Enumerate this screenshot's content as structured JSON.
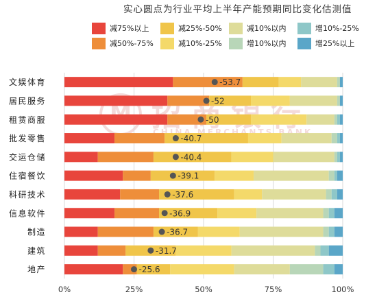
{
  "title": "实心圆点为行业平均上半年产能预期同比变化估测值",
  "watermark": {
    "cn": "招商银行",
    "en": "CHINA MERCHANTS BANK"
  },
  "legend": [
    {
      "label": "减75%以上",
      "color": "#e8453c"
    },
    {
      "label": "减25%-50%",
      "color": "#f0c54a"
    },
    {
      "label": "减10%以内",
      "color": "#dedc9a"
    },
    {
      "label": "增10%-25%",
      "color": "#8ec7c8"
    },
    {
      "label": "减50%-75%",
      "color": "#ee8e3a"
    },
    {
      "label": "减10%-25%",
      "color": "#f4d96a"
    },
    {
      "label": "增10%以内",
      "color": "#b8d6b8"
    },
    {
      "label": "增25%以上",
      "color": "#5aa6c8"
    }
  ],
  "chart_data": {
    "type": "bar",
    "orientation": "horizontal",
    "stacked": true,
    "xlim": [
      0,
      100
    ],
    "xticks": [
      "0%",
      "25%",
      "50%",
      "75%",
      "100%"
    ],
    "categories": [
      "文娱体育",
      "居民服务",
      "租赁商服",
      "批发零售",
      "交运仓储",
      "住宿餐饮",
      "科研技术",
      "信息软件",
      "制造",
      "建筑",
      "地产"
    ],
    "series": [
      {
        "name": "减75%以上",
        "color": "#e8453c",
        "values": [
          39,
          37,
          37,
          18,
          12,
          21,
          20,
          18,
          12,
          12,
          21
        ]
      },
      {
        "name": "减50%-75%",
        "color": "#ee8e3a",
        "values": [
          25,
          15,
          14,
          18,
          20,
          10,
          14,
          16,
          20,
          10,
          5
        ]
      },
      {
        "name": "减25%-50%",
        "color": "#f0c54a",
        "values": [
          13,
          15,
          16,
          30,
          28,
          23,
          27,
          21,
          16,
          18,
          12
        ]
      },
      {
        "name": "减10%-25%",
        "color": "#f4d96a",
        "values": [
          8,
          14,
          20,
          12,
          15,
          14,
          10,
          14,
          15,
          20,
          23
        ]
      },
      {
        "name": "减10%以内",
        "color": "#dedc9a",
        "values": [
          13,
          17,
          10,
          18,
          22,
          27,
          23,
          24,
          30,
          30,
          20
        ]
      },
      {
        "name": "增10%以内",
        "color": "#b8d6b8",
        "values": [
          1,
          1,
          1,
          2,
          1,
          2,
          2,
          2,
          2,
          2,
          12
        ]
      },
      {
        "name": "增10%-25%",
        "color": "#8ec7c8",
        "values": [
          0,
          0,
          1,
          1,
          1,
          1,
          2,
          2,
          2,
          3,
          4
        ]
      },
      {
        "name": "增25%以上",
        "color": "#5aa6c8",
        "values": [
          1,
          1,
          1,
          1,
          1,
          2,
          2,
          3,
          3,
          5,
          3
        ]
      }
    ],
    "averages": [
      -53.7,
      -52,
      -50,
      -40.7,
      -40.4,
      -39.1,
      -37.6,
      -36.9,
      -36.7,
      -31.7,
      -25.6
    ],
    "average_marker_position": [
      54,
      51,
      49,
      40,
      40,
      39,
      37,
      36,
      35,
      31,
      25
    ]
  }
}
